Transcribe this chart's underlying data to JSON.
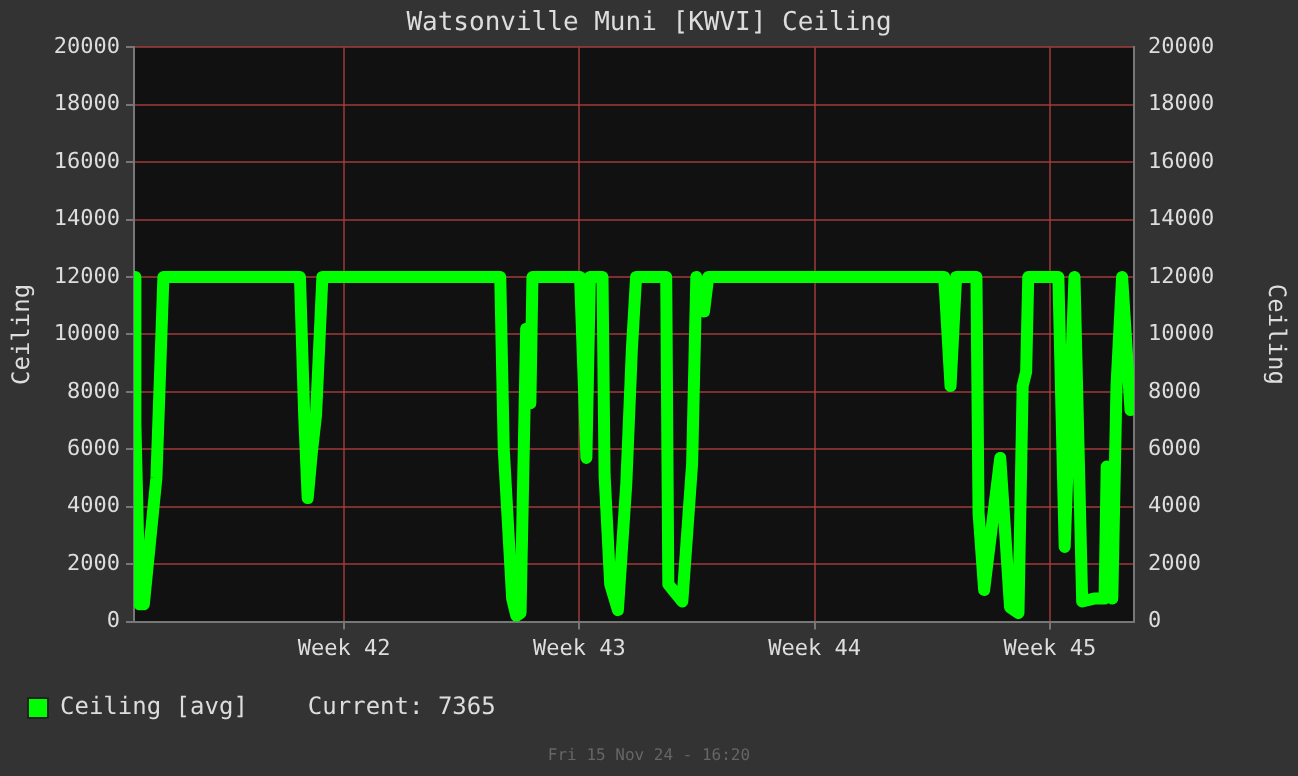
{
  "chart_data": {
    "type": "line",
    "title": "Watsonville Muni [KWVI] Ceiling",
    "ylabel": "Ceiling",
    "y2label": "Ceiling",
    "x": [
      "--10-07T18:00",
      "--10-07T19:00",
      "--10-07T22:00",
      "--10-08T01:00",
      "--10-08T10:00",
      "--10-08T15:00",
      "--10-12T16:30",
      "--10-12T19:30",
      "--10-12T22:00",
      "--10-13T01:00",
      "--10-13T04:00",
      "--10-13T08:30",
      "--10-18T15:30",
      "--10-18T18:00",
      "--10-19T00:00",
      "--10-19T03:00",
      "--10-19T06:00",
      "--10-19T10:00",
      "--10-19T13:00",
      "--10-19T14:30",
      "--10-21T00:30",
      "--10-21T05:00",
      "--10-21T07:30",
      "--10-21T16:30",
      "--10-21T18:00",
      "--10-21T22:00",
      "--10-22T03:30",
      "--10-22T09:30",
      "--10-22T13:30",
      "--10-22T16:30",
      "--10-23T14:00",
      "--10-23T15:30",
      "--10-24T01:30",
      "--10-24T08:30",
      "--10-24T11:30",
      "--10-24T17:00",
      "--10-24T20:00",
      "--10-31T20:30",
      "--11-01T01:00",
      "--11-01T05:00",
      "--11-01T19:30",
      "--11-01T21:00",
      "--11-02T01:00",
      "--11-02T12:30",
      "--11-02T19:30",
      "--11-03T01:30",
      "--11-03T04:30",
      "--11-03T07:00",
      "--11-03T08:30",
      "--11-04T06:00",
      "--11-04T10:30",
      "--11-04T17:30",
      "--11-04T23:00",
      "--11-05T07:30",
      "--11-05T15:00",
      "--11-05T16:30",
      "--11-05T20:30",
      "--11-05T23:30",
      "--11-06T03:30",
      "--11-06T09:30"
    ],
    "series": [
      {
        "name": "Ceiling [avg]",
        "color": "#00ff00",
        "values": [
          12000,
          6900,
          600,
          600,
          5000,
          12000,
          12000,
          7200,
          4300,
          5900,
          7200,
          12000,
          12000,
          6000,
          800,
          200,
          300,
          10200,
          7600,
          12000,
          12000,
          5700,
          12000,
          12000,
          5100,
          1300,
          400,
          4800,
          9500,
          12000,
          12000,
          1300,
          700,
          5500,
          12000,
          10800,
          12000,
          12000,
          8200,
          12000,
          12000,
          3800,
          1100,
          5700,
          500,
          300,
          8200,
          8700,
          12000,
          12000,
          2600,
          12000,
          700,
          800,
          800,
          5400,
          800,
          8200,
          12000,
          7365
        ]
      }
    ],
    "xlim": [
      "--10-07T18:00",
      "--11-06T12:00"
    ],
    "xticks": [
      {
        "value": "--10-14",
        "label": "Week 42"
      },
      {
        "value": "--10-21",
        "label": "Week 43"
      },
      {
        "value": "--10-28",
        "label": "Week 44"
      },
      {
        "value": "--11-04",
        "label": "Week 45"
      }
    ],
    "ylim": [
      0,
      20000
    ],
    "yticks": [
      0,
      2000,
      4000,
      6000,
      8000,
      10000,
      12000,
      14000,
      16000,
      18000,
      20000
    ],
    "y2lim": [
      0,
      20000
    ],
    "y2ticks": [
      0,
      2000,
      4000,
      6000,
      8000,
      10000,
      12000,
      14000,
      16000,
      18000,
      20000
    ],
    "grid": true,
    "legend": "bottom",
    "marker": "none",
    "line_style": "solid",
    "annotations": [
      "Current: 7365",
      "Fri 15 Nov 24 - 16:20"
    ]
  }
}
